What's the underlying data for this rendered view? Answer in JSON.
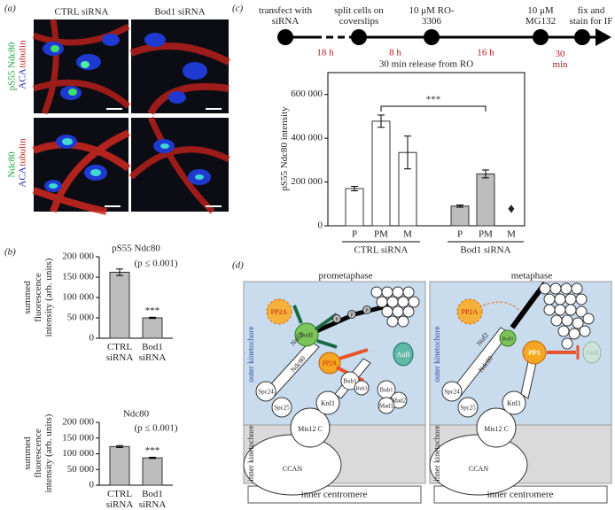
{
  "panel_labels": [
    "(a)",
    "(b)",
    "(c)",
    "(d)"
  ],
  "panel_a": {
    "columns": [
      "CTRL siRNA",
      "Bod1 siRNA"
    ],
    "rows": [
      {
        "stain": "pS55 Ndc80",
        "aca": "ACA",
        "tubulin": "tubulin"
      },
      {
        "stain": "Ndc80",
        "aca": "ACA",
        "tubulin": "tubulin"
      }
    ]
  },
  "timeline": {
    "steps": [
      "transfect with siRNA",
      "split cells on coverslips",
      "10 μM RO-3306",
      "10 μM MG132",
      "fix and stain for IF"
    ],
    "durations": [
      "18 h",
      "8 h",
      "16 h",
      "30 min"
    ]
  },
  "chart_data": [
    {
      "type": "bar",
      "title": "pS55 Ndc80",
      "ylabel": "summed fluorescence intensity (arb. units)",
      "categories": [
        "CTRL siRNA",
        "Bod1 siRNA"
      ],
      "values": [
        162000,
        50000
      ],
      "errors": [
        8000,
        1500
      ],
      "colors": [
        "#bdbdbd",
        "#bdbdbd"
      ],
      "ylim": [
        0,
        200000
      ],
      "yticks": [
        0,
        {
          "value": 50000,
          "label": "50 000"
        },
        {
          "value": 100000,
          "label": "100 000"
        },
        {
          "value": 150000,
          "label": "150 000"
        },
        {
          "value": 200000,
          "label": "200 000"
        }
      ],
      "p_text": "(p ≤ 0.001)",
      "significance": "***"
    },
    {
      "type": "bar",
      "title": "Ndc80",
      "ylabel": "summed fluorescence intensity (arb. units)",
      "categories": [
        "CTRL siRNA",
        "Bod1 siRNA"
      ],
      "values": [
        123000,
        87000
      ],
      "errors": [
        3000,
        2000
      ],
      "colors": [
        "#bdbdbd",
        "#bdbdbd"
      ],
      "ylim": [
        0,
        200000
      ],
      "yticks": [
        0,
        {
          "value": 50000,
          "label": "50 000"
        },
        {
          "value": 100000,
          "label": "100 000"
        },
        {
          "value": 150000,
          "label": "150 000"
        },
        {
          "value": 200000,
          "label": "200 000"
        }
      ],
      "p_text": "(p ≤ 0.001)",
      "significance": "***"
    },
    {
      "type": "bar",
      "title": "30 min release from RO",
      "ylabel": "pS55 Ndc80 intensity",
      "categories": [
        "P",
        "PM",
        "M",
        "P",
        "PM",
        "M"
      ],
      "values": [
        170000,
        478000,
        335000,
        90000,
        237000,
        null
      ],
      "errors": [
        10000,
        28000,
        75000,
        5000,
        18000,
        null
      ],
      "colors": [
        "#ffffff",
        "#ffffff",
        "#ffffff",
        "#bdbdbd",
        "#bdbdbd",
        "#bdbdbd"
      ],
      "group_labels": [
        "CTRL siRNA",
        "Bod1 siRNA"
      ],
      "ylim": [
        0,
        700000
      ],
      "yticks": [
        0,
        {
          "value": 200000,
          "label": "200 000"
        },
        {
          "value": 400000,
          "label": "400 000"
        },
        {
          "value": 600000,
          "label": "600 000"
        }
      ],
      "significance": "***",
      "missing_marker": "♦"
    }
  ],
  "panel_d": {
    "left": {
      "title": "prometaphase",
      "pp2a": "PP2A",
      "bod1": "Bod1",
      "pp2a_b": "PP2A",
      "aub": "AuB",
      "nuf2": "Nuf2",
      "ndc80": "Ndc80",
      "spc24": "Spc24",
      "spc25": "Spc25",
      "knl1": "Knl1",
      "mis12": "Mis12 C",
      "ccan": "CCAN",
      "bub1": "Bub1",
      "bub3": "Bub3",
      "bub1b": "Bub1",
      "mad2": "Mad2",
      "mad1": "Mad1"
    },
    "right": {
      "title": "metaphase",
      "pp2a": "PP2A",
      "bod1": "Bod1",
      "pp1": "PP1",
      "aub": "AuB",
      "nuf2": "Nuf2",
      "ndc80": "Ndc80",
      "spc24": "Spc24",
      "spc25": "Spc25",
      "knl1": "Knl1",
      "mis12": "Mis12 C",
      "ccan": "CCAN"
    },
    "regions": {
      "outer": "outer kinetochore",
      "inner": "inner kinetochore",
      "centromere": "inner centromere"
    },
    "phospho": "P"
  }
}
